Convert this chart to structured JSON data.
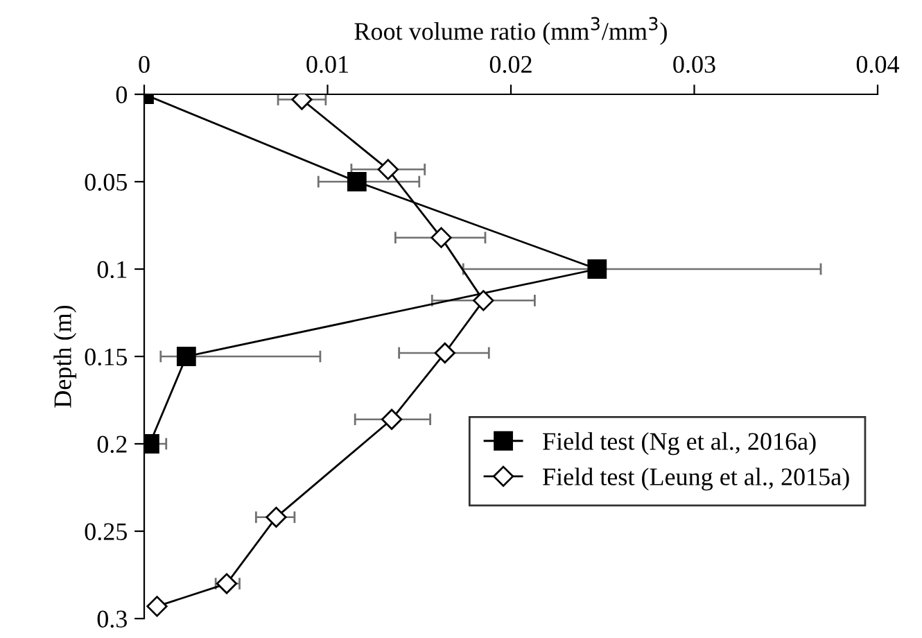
{
  "chart_data": {
    "type": "line",
    "xlabel": "Root volume ratio (mm$^{3}$/mm$^{3}$)",
    "ylabel": "Depth (m)",
    "xlim": [
      0,
      0.04
    ],
    "xticks": [
      0,
      0.01,
      0.02,
      0.03,
      0.04
    ],
    "ylim": [
      0.3,
      0
    ],
    "yticks": [
      0,
      0.05,
      0.1,
      0.15,
      0.2,
      0.25,
      0.3
    ],
    "grid": false,
    "legend": "right",
    "line_style": "solid",
    "series": [
      {
        "name": "Field test (Ng et al., 2016a)",
        "color": "#000000",
        "marker": "square",
        "x": [
          0,
          0.0116,
          0.0247,
          0.0023,
          0.0003
        ],
        "values": [
          0,
          0.05,
          0.1,
          0.15,
          0.2
        ],
        "xerrors": [
          null,
          [
            0.0095,
            0.015
          ],
          [
            0.0174,
            0.0369
          ],
          [
            0.0009,
            0.0096
          ],
          [
            0.0003,
            0.0012
          ]
        ]
      },
      {
        "name": "Field test (Leung et al., 2015a)",
        "color": "#ffffff",
        "marker": "diamond",
        "x": [
          0.0086,
          0.0133,
          0.0162,
          0.0185,
          0.0164,
          0.0135,
          0.0072,
          0.0045,
          0.0007
        ],
        "values": [
          0.003,
          0.043,
          0.082,
          0.118,
          0.148,
          0.186,
          0.242,
          0.28,
          0.293
        ],
        "xerrors": [
          [
            0.0073,
            0.0099
          ],
          [
            0.0113,
            0.0153
          ],
          [
            0.0137,
            0.0186
          ],
          [
            0.0157,
            0.0213
          ],
          [
            0.0139,
            0.0188
          ],
          [
            0.0115,
            0.0156
          ],
          [
            0.0061,
            0.0082
          ],
          [
            0.0039,
            0.0052
          ],
          null
        ]
      }
    ]
  }
}
